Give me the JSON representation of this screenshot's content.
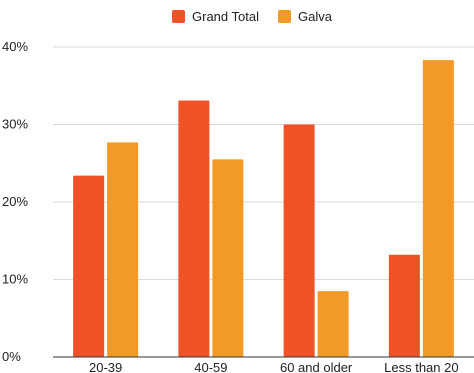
{
  "chart_data": {
    "type": "bar",
    "categories": [
      "20-39",
      "40-59",
      "60 and older",
      "Less than 20"
    ],
    "series": [
      {
        "name": "Grand Total",
        "values": [
          23.4,
          33.1,
          30.0,
          13.2
        ],
        "color": "#f05228"
      },
      {
        "name": "Galva",
        "values": [
          27.7,
          25.5,
          8.5,
          38.3
        ],
        "color": "#f39a26"
      }
    ],
    "ylim": [
      0,
      40
    ],
    "yticks": [
      "0%",
      "10%",
      "20%",
      "30%",
      "40%"
    ],
    "grid": true,
    "legend_position": "top-center",
    "title": "",
    "xlabel": "",
    "ylabel": ""
  }
}
